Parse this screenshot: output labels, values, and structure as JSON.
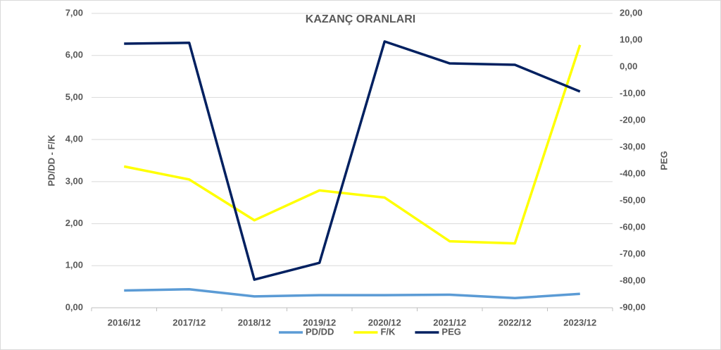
{
  "chart_data": {
    "type": "line",
    "title": "KAZANÇ ORANLARI",
    "y_label": "PD/DD - F/K",
    "y2_label": "PEG",
    "categories": [
      "2016/12",
      "2017/12",
      "2018/12",
      "2019/12",
      "2020/12",
      "2021/12",
      "2022/12",
      "2023/12"
    ],
    "series": [
      {
        "name": "PD/DD",
        "color": "#5b9bd5",
        "values": [
          0.41,
          0.44,
          0.27,
          0.3,
          0.3,
          0.31,
          0.23,
          0.33
        ]
      },
      {
        "name": "F/K",
        "color": "#ffff00",
        "values": [
          3.36,
          3.05,
          2.08,
          2.79,
          2.62,
          1.58,
          1.53,
          6.25
        ]
      },
      {
        "name": "PEG",
        "color": "#002060",
        "axis": "y2",
        "values": [
          8.7,
          9.0,
          -79.5,
          -73.2,
          9.5,
          1.3,
          0.8,
          -9.2
        ]
      }
    ],
    "ylim": [
      0,
      7
    ],
    "yticks": [
      {
        "value": 0,
        "label": "0,00"
      },
      {
        "value": 1,
        "label": "1,00"
      },
      {
        "value": 2,
        "label": "2,00"
      },
      {
        "value": 3,
        "label": "3,00"
      },
      {
        "value": 4,
        "label": "4,00"
      },
      {
        "value": 5,
        "label": "5,00"
      },
      {
        "value": 6,
        "label": "6,00"
      },
      {
        "value": 7,
        "label": "7,00"
      }
    ],
    "y2lim": [
      -90,
      20
    ],
    "y2ticks": [
      {
        "value": -90,
        "label": "-90,00"
      },
      {
        "value": -80,
        "label": "-80,00"
      },
      {
        "value": -70,
        "label": "-70,00"
      },
      {
        "value": -60,
        "label": "-60,00"
      },
      {
        "value": -50,
        "label": "-50,00"
      },
      {
        "value": -40,
        "label": "-40,00"
      },
      {
        "value": -30,
        "label": "-30,00"
      },
      {
        "value": -20,
        "label": "-20,00"
      },
      {
        "value": -10,
        "label": "-10,00"
      },
      {
        "value": 0,
        "label": "0,00"
      },
      {
        "value": 10,
        "label": "10,00"
      },
      {
        "value": 20,
        "label": "20,00"
      }
    ],
    "grid": true,
    "legend": "bottom"
  }
}
